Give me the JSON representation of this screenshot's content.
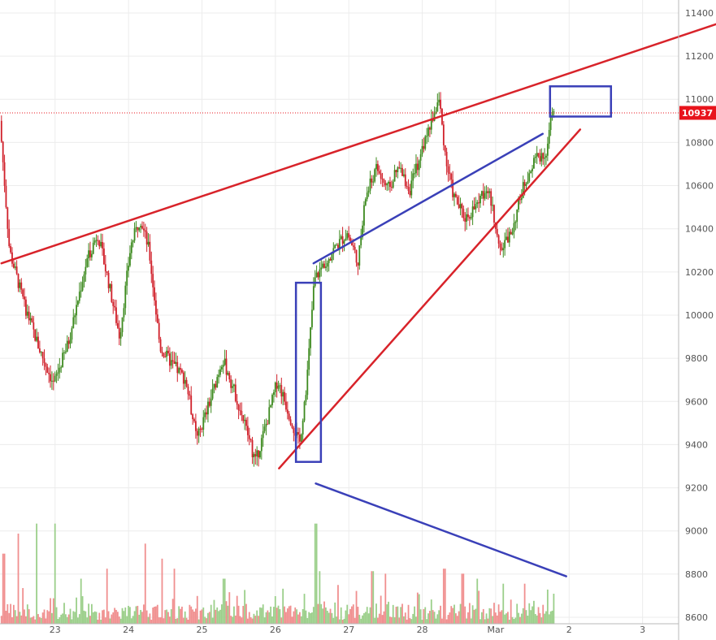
{
  "chart_data": {
    "type": "candlestick",
    "x_ticks": [
      "23",
      "24",
      "25",
      "26",
      "27",
      "28",
      "Mar",
      "2",
      "3"
    ],
    "y_ticks": [
      8600,
      8800,
      9000,
      9200,
      9400,
      9600,
      9800,
      10000,
      10200,
      10400,
      10600,
      10800,
      11000,
      11200,
      11400
    ],
    "ylim": [
      8570,
      11460
    ],
    "xlim": [
      22.25,
      32.0
    ],
    "grid": true,
    "last_price": {
      "value": 10937,
      "label": "10937",
      "color": "#e8141c"
    },
    "colors": {
      "up": "#3d8a1f",
      "down": "#d0202a",
      "vol_up": "#9bcf8a",
      "vol_down": "#f08f8f",
      "trend": "#d8232a",
      "channel": "#3a40b8"
    },
    "price_anchors": [
      [
        22.27,
        10900
      ],
      [
        22.4,
        10300
      ],
      [
        22.6,
        10050
      ],
      [
        22.8,
        9850
      ],
      [
        23.0,
        9680
      ],
      [
        23.2,
        9870
      ],
      [
        23.45,
        10250
      ],
      [
        23.6,
        10380
      ],
      [
        23.75,
        10150
      ],
      [
        23.9,
        9900
      ],
      [
        24.05,
        10320
      ],
      [
        24.18,
        10450
      ],
      [
        24.3,
        10300
      ],
      [
        24.45,
        9850
      ],
      [
        24.6,
        9780
      ],
      [
        24.8,
        9700
      ],
      [
        24.95,
        9420
      ],
      [
        25.15,
        9620
      ],
      [
        25.3,
        9800
      ],
      [
        25.45,
        9660
      ],
      [
        25.6,
        9500
      ],
      [
        25.75,
        9320
      ],
      [
        25.9,
        9500
      ],
      [
        26.05,
        9700
      ],
      [
        26.2,
        9550
      ],
      [
        26.35,
        9400
      ],
      [
        26.45,
        9700
      ],
      [
        26.55,
        10160
      ],
      [
        26.7,
        10250
      ],
      [
        26.85,
        10320
      ],
      [
        27.0,
        10380
      ],
      [
        27.15,
        10250
      ],
      [
        27.25,
        10550
      ],
      [
        27.4,
        10680
      ],
      [
        27.55,
        10580
      ],
      [
        27.7,
        10680
      ],
      [
        27.85,
        10580
      ],
      [
        28.05,
        10800
      ],
      [
        28.25,
        11000
      ],
      [
        28.35,
        10700
      ],
      [
        28.45,
        10550
      ],
      [
        28.6,
        10450
      ],
      [
        28.75,
        10500
      ],
      [
        28.9,
        10600
      ],
      [
        29.0,
        10450
      ],
      [
        29.1,
        10300
      ],
      [
        29.25,
        10400
      ],
      [
        29.4,
        10600
      ],
      [
        29.55,
        10720
      ],
      [
        29.7,
        10750
      ],
      [
        29.8,
        10950
      ]
    ],
    "volume": {
      "range": [
        0,
        3000
      ],
      "spikes": [
        [
          22.3,
          1400
        ],
        [
          22.5,
          1800
        ],
        [
          22.75,
          2000
        ],
        [
          23.0,
          2000
        ],
        [
          23.35,
          900
        ],
        [
          23.7,
          1100
        ],
        [
          24.22,
          1600
        ],
        [
          24.45,
          1300
        ],
        [
          24.62,
          1100
        ],
        [
          25.3,
          900
        ],
        [
          26.1,
          700
        ],
        [
          26.55,
          2000
        ],
        [
          26.6,
          1050
        ],
        [
          27.32,
          1050
        ],
        [
          27.5,
          1000
        ],
        [
          28.3,
          1100
        ],
        [
          28.55,
          1000
        ],
        [
          28.75,
          900
        ],
        [
          29.1,
          800
        ],
        [
          29.4,
          800
        ],
        [
          29.8,
          600
        ]
      ]
    },
    "annotations": [
      {
        "type": "trendline",
        "color": "#d8232a",
        "points": [
          [
            22.27,
            10240
          ],
          [
            32.02,
            11350
          ]
        ]
      },
      {
        "type": "trendline",
        "color": "#d8232a",
        "points": [
          [
            26.05,
            9290
          ],
          [
            30.15,
            10860
          ]
        ]
      },
      {
        "type": "trendline",
        "color": "#3a40b8",
        "points": [
          [
            26.52,
            10240
          ],
          [
            29.64,
            10840
          ]
        ]
      },
      {
        "type": "trendline",
        "color": "#3a40b8",
        "points": [
          [
            26.55,
            9220
          ],
          [
            29.96,
            8790
          ]
        ]
      },
      {
        "type": "rectangle",
        "color": "#3a40b8",
        "points": [
          [
            26.28,
            10150
          ],
          [
            26.62,
            9320
          ]
        ]
      },
      {
        "type": "rectangle",
        "color": "#3a40b8",
        "points": [
          [
            29.74,
            11060
          ],
          [
            30.57,
            10920
          ]
        ]
      }
    ]
  }
}
